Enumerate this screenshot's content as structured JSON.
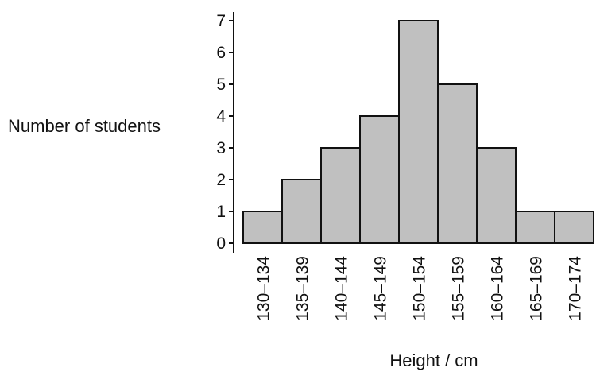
{
  "chart_data": {
    "type": "bar",
    "categories": [
      "130–134",
      "135–139",
      "140–144",
      "145–149",
      "150–154",
      "155–159",
      "160–164",
      "165–169",
      "170–174"
    ],
    "values": [
      1,
      2,
      3,
      4,
      7,
      5,
      3,
      1,
      1
    ],
    "xlabel": "Height / cm",
    "ylabel": "Number of students",
    "ylim": [
      0,
      7
    ],
    "yticks": [
      0,
      1,
      2,
      3,
      4,
      5,
      6,
      7
    ],
    "grid": false,
    "legend": "none",
    "colors": {
      "bar": "#c0c0c0",
      "edge": "#111111",
      "axis": "#111111"
    }
  }
}
